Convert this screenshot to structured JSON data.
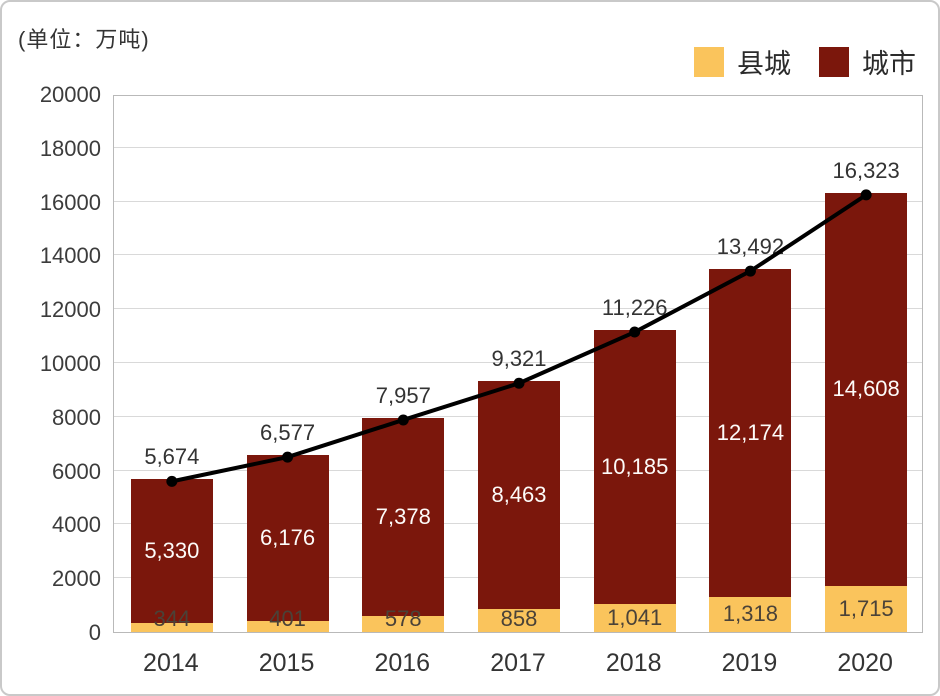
{
  "unit_label": "(单位：万吨)",
  "chart_data": {
    "type": "bar",
    "stacked": true,
    "title": "",
    "unit": "万吨",
    "categories": [
      "2014",
      "2015",
      "2016",
      "2017",
      "2018",
      "2019",
      "2020"
    ],
    "series": [
      {
        "name": "县城",
        "color": "#FAC45C",
        "values": [
          344,
          401,
          578,
          858,
          1041,
          1318,
          1715
        ],
        "labels": [
          "344",
          "401",
          "578",
          "858",
          "1,041",
          "1,318",
          "1,715"
        ],
        "label_color": "#4A4238"
      },
      {
        "name": "城市",
        "color": "#7B170C",
        "values": [
          5330,
          6176,
          7378,
          8463,
          10185,
          12174,
          14608
        ],
        "labels": [
          "5,330",
          "6,176",
          "7,378",
          "8,463",
          "10,185",
          "12,174",
          "14,608"
        ],
        "label_color": "#FDFBF9"
      }
    ],
    "line": {
      "color": "#000000",
      "values": [
        5674,
        6577,
        7957,
        9321,
        11226,
        13492,
        16323
      ],
      "labels": [
        "5,674",
        "6,577",
        "7,957",
        "9,321",
        "11,226",
        "13,492",
        "16,323"
      ],
      "label_color": "#333333"
    },
    "ylim": [
      0,
      20000
    ],
    "ytick_step": 2000,
    "ytick_labels": [
      "0",
      "2000",
      "4000",
      "6000",
      "8000",
      "10000",
      "12000",
      "14000",
      "16000",
      "18000",
      "20000"
    ],
    "grid": true,
    "legend_position": "top-right"
  }
}
